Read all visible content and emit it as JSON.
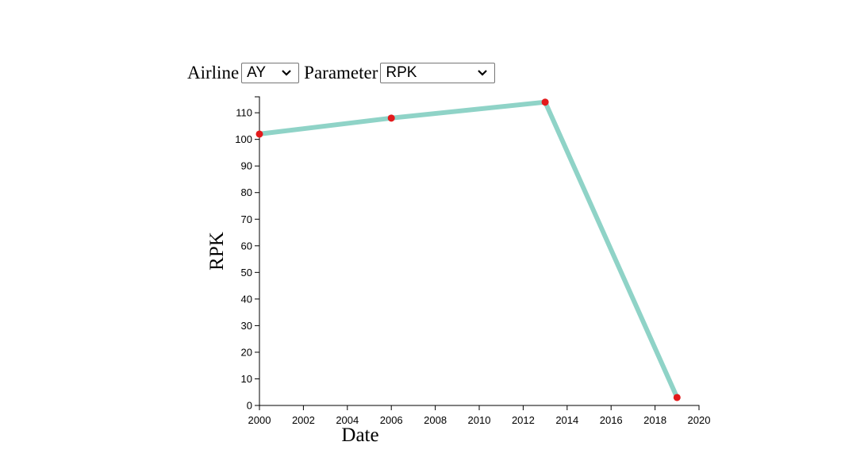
{
  "controls": {
    "airline_label": "Airline",
    "airline_value": "AY",
    "parameter_label": "Parameter",
    "parameter_value": "RPK"
  },
  "chart_data": {
    "type": "line",
    "xlabel": "Date",
    "ylabel": "RPK",
    "xlim": [
      2000,
      2020
    ],
    "ylim": [
      0,
      116
    ],
    "x_ticks": [
      "2000",
      "2002",
      "2004",
      "2006",
      "2008",
      "2010",
      "2012",
      "2014",
      "2016",
      "2018",
      "2020"
    ],
    "y_ticks": [
      "0",
      "10",
      "20",
      "30",
      "40",
      "50",
      "60",
      "70",
      "80",
      "90",
      "100",
      "110"
    ],
    "x": [
      2000,
      2006,
      2013,
      2019
    ],
    "values": [
      102,
      108,
      114,
      3
    ],
    "grid": false,
    "legend": "none",
    "line_color": "#8fd3c7",
    "point_color": "#e31a1c"
  }
}
